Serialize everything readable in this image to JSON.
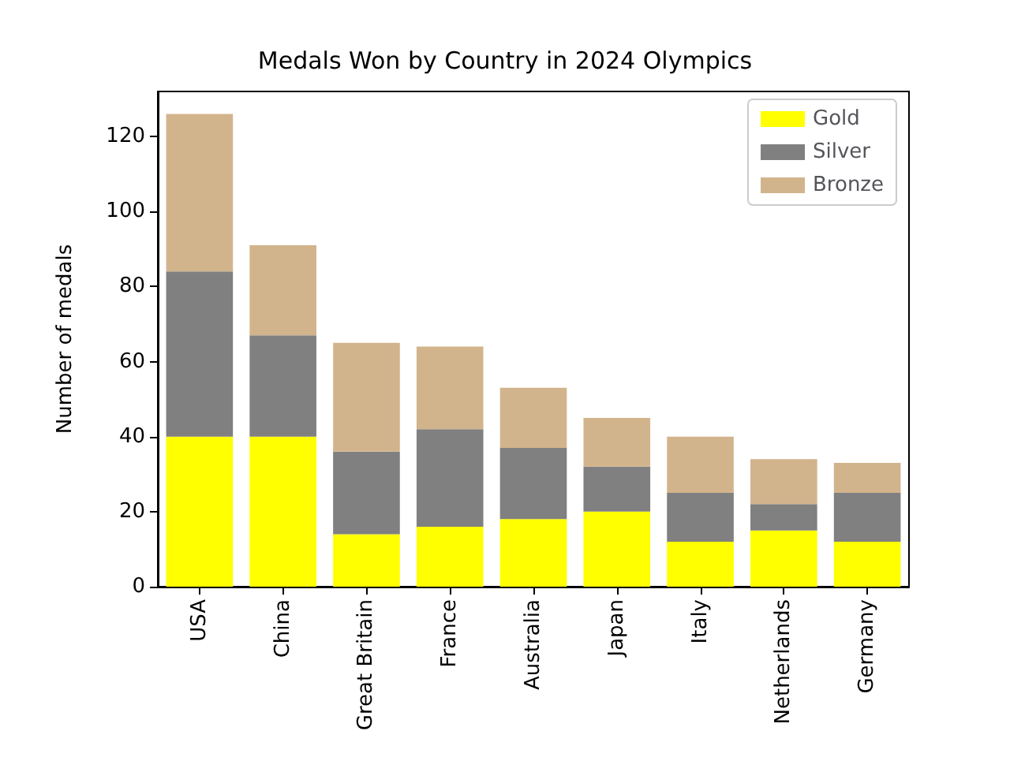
{
  "chart_data": {
    "type": "bar",
    "title": "Medals Won by Country in 2024 Olympics",
    "ylabel": "Number of medals",
    "categories": [
      "USA",
      "China",
      "Great Britain",
      "France",
      "Australia",
      "Japan",
      "Italy",
      "Netherlands",
      "Germany"
    ],
    "series": [
      {
        "name": "Gold",
        "color": "#ffff00",
        "values": [
          40,
          40,
          14,
          16,
          18,
          20,
          12,
          15,
          12
        ]
      },
      {
        "name": "Silver",
        "color": "#808080",
        "values": [
          44,
          27,
          22,
          26,
          19,
          12,
          13,
          7,
          13
        ]
      },
      {
        "name": "Bronze",
        "color": "#d2b48c",
        "values": [
          42,
          24,
          29,
          22,
          16,
          13,
          15,
          12,
          8
        ]
      }
    ],
    "stacked": true,
    "ylim": [
      0,
      132
    ],
    "yticks": [
      0,
      20,
      40,
      60,
      80,
      100,
      120
    ],
    "grid": false,
    "legend": "top right"
  }
}
